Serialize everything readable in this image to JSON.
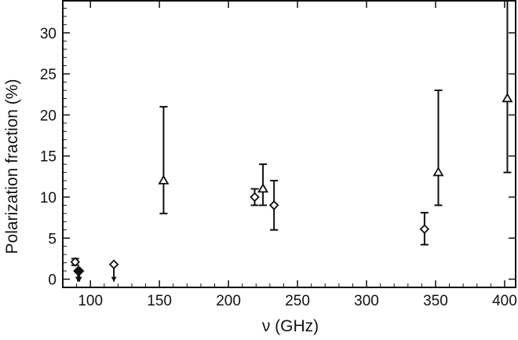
{
  "chart_data": {
    "type": "scatter",
    "title": "",
    "xlabel": "ν (GHz)",
    "ylabel": "Polarization fraction (%)",
    "xlim": [
      80,
      408
    ],
    "ylim": [
      -1,
      34
    ],
    "xticks": [
      100,
      150,
      200,
      250,
      300,
      350,
      400
    ],
    "yticks": [
      0,
      5,
      10,
      15,
      20,
      25,
      30
    ],
    "grid": false,
    "legend": "none",
    "colors": {
      "marker": "#111111",
      "axis": "#111111"
    },
    "series": [
      {
        "marker": "open-diamond",
        "points": [
          {
            "x": 89,
            "y": 2.1,
            "ylow": 1.7,
            "yhigh": 2.5
          },
          {
            "x": 117,
            "y": 1.8,
            "upper_limit": true
          },
          {
            "x": 219,
            "y": 10,
            "ylow": 9,
            "yhigh": 11
          },
          {
            "x": 233,
            "y": 9,
            "ylow": 6,
            "yhigh": 12
          },
          {
            "x": 342,
            "y": 6.1,
            "ylow": 4.2,
            "yhigh": 8.1
          }
        ]
      },
      {
        "marker": "filled-diamond",
        "points": [
          {
            "x": 91,
            "y": 1.0,
            "upper_limit": true
          },
          {
            "x": 92,
            "y": 1.0,
            "upper_limit": true
          }
        ]
      },
      {
        "marker": "open-triangle",
        "points": [
          {
            "x": 153,
            "y": 12,
            "ylow": 8,
            "yhigh": 21
          },
          {
            "x": 225,
            "y": 11,
            "ylow": 9,
            "yhigh": 14
          },
          {
            "x": 352,
            "y": 13,
            "ylow": 9,
            "yhigh": 23
          },
          {
            "x": 402,
            "y": 22,
            "ylow": 13,
            "yhigh": 34
          }
        ]
      }
    ]
  }
}
